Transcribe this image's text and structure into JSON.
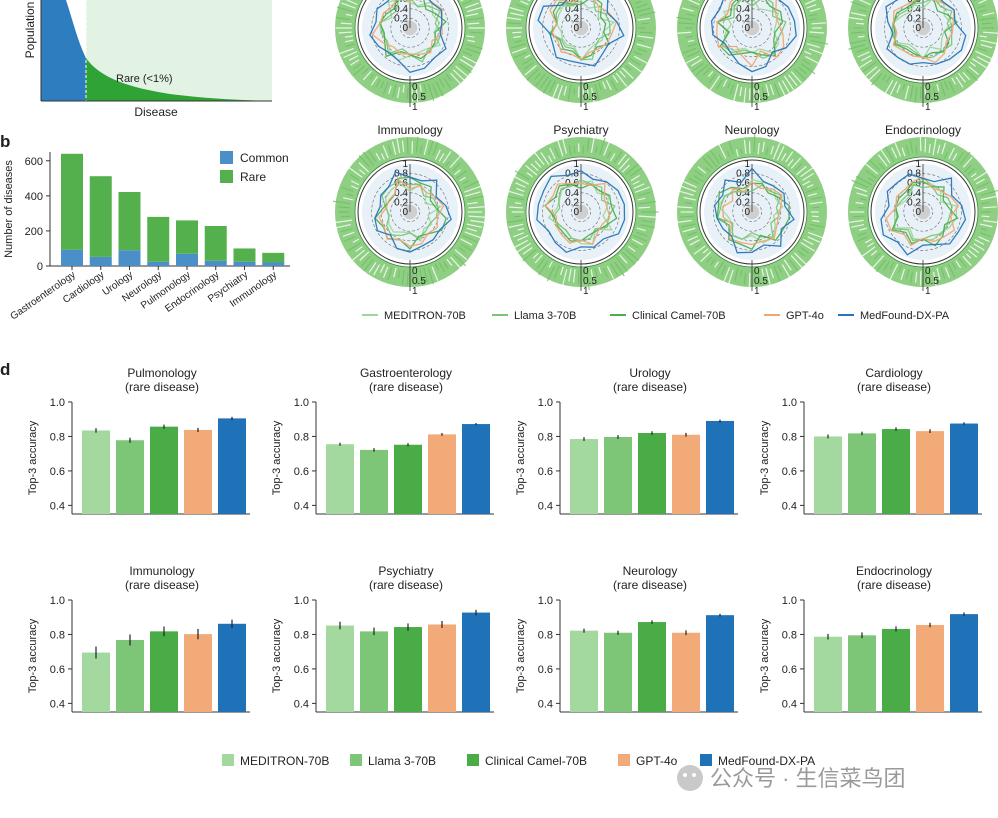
{
  "chart_data": [
    {
      "id": "panel-a",
      "type": "area",
      "xlabel": "Disease",
      "ylabel": "Population",
      "annotation": "Rare (<1%)",
      "colors": {
        "common": "#2e7ebf",
        "rare": "#2fa335",
        "rare_region": "#e3f3e3"
      }
    },
    {
      "id": "panel-b",
      "type": "bar",
      "letter": "b",
      "ylabel": "Number of diseases",
      "ylim": [
        0,
        650
      ],
      "yticks": [
        "0",
        "200",
        "400",
        "600"
      ],
      "categories": [
        "Gastroenterology",
        "Cardiology",
        "Urology",
        "Neurology",
        "Pulmonology",
        "Endocrinology",
        "Psychiatry",
        "Immunology"
      ],
      "series": [
        {
          "name": "Common",
          "color": "#4a8fc7",
          "values": [
            92,
            52,
            90,
            24,
            70,
            30,
            24,
            20
          ]
        },
        {
          "name": "Rare",
          "color": "#53b04d",
          "values": [
            548,
            460,
            332,
            256,
            190,
            198,
            76,
            55
          ]
        }
      ],
      "legend": "top-right"
    },
    {
      "id": "panel-c",
      "type": "radar",
      "radial_ticks": [
        "0",
        "0.2",
        "0.4",
        "0.6",
        "0.8",
        "1"
      ],
      "outer_ticks": [
        "0",
        "0.5",
        "1"
      ],
      "charts": [
        {
          "title": "",
          "values": {
            "MEDITRON-70B": 0.58,
            "Llama 3-70B": 0.6,
            "Clinical Camel-70B": 0.64,
            "GPT-4o": 0.66,
            "MedFound-DX-PA": 0.78
          }
        },
        {
          "title": "",
          "values": {
            "MEDITRON-70B": 0.55,
            "Llama 3-70B": 0.57,
            "Clinical Camel-70B": 0.6,
            "GPT-4o": 0.64,
            "MedFound-DX-PA": 0.76
          }
        },
        {
          "title": "",
          "values": {
            "MEDITRON-70B": 0.56,
            "Llama 3-70B": 0.58,
            "Clinical Camel-70B": 0.62,
            "GPT-4o": 0.65,
            "MedFound-DX-PA": 0.8
          }
        },
        {
          "title": "",
          "values": {
            "MEDITRON-70B": 0.55,
            "Llama 3-70B": 0.58,
            "Clinical Camel-70B": 0.6,
            "GPT-4o": 0.63,
            "MedFound-DX-PA": 0.78
          }
        },
        {
          "title": "Immunology",
          "values": {
            "MEDITRON-70B": 0.5,
            "Llama 3-70B": 0.55,
            "Clinical Camel-70B": 0.62,
            "GPT-4o": 0.6,
            "MedFound-DX-PA": 0.76
          }
        },
        {
          "title": "Psychiatry",
          "values": {
            "MEDITRON-70B": 0.6,
            "Llama 3-70B": 0.58,
            "Clinical Camel-70B": 0.62,
            "GPT-4o": 0.64,
            "MedFound-DX-PA": 0.82
          }
        },
        {
          "title": "Neurology",
          "values": {
            "MEDITRON-70B": 0.6,
            "Llama 3-70B": 0.58,
            "Clinical Camel-70B": 0.66,
            "GPT-4o": 0.6,
            "MedFound-DX-PA": 0.8
          }
        },
        {
          "title": "Endocrinology",
          "values": {
            "MEDITRON-70B": 0.56,
            "Llama 3-70B": 0.58,
            "Clinical Camel-70B": 0.62,
            "GPT-4o": 0.64,
            "MedFound-DX-PA": 0.82
          }
        }
      ],
      "legend": [
        {
          "name": "MEDITRON-70B",
          "color": "#9fd69a"
        },
        {
          "name": "Llama 3-70B",
          "color": "#7cc576"
        },
        {
          "name": "Clinical Camel-70B",
          "color": "#4cae4c"
        },
        {
          "name": "GPT-4o",
          "color": "#f0a672"
        },
        {
          "name": "MedFound-DX-PA",
          "color": "#2676b8"
        }
      ]
    },
    {
      "id": "panel-d",
      "type": "bar",
      "letter": "d",
      "ylabel": "Top-3 accuracy",
      "ylim": [
        0.35,
        1.0
      ],
      "yticks": [
        "0.4",
        "0.6",
        "0.8",
        "1.0"
      ],
      "models": [
        {
          "name": "MEDITRON-70B",
          "color": "#a3d89e"
        },
        {
          "name": "Llama 3-70B",
          "color": "#7dc577"
        },
        {
          "name": "Clinical Camel-70B",
          "color": "#49ac47"
        },
        {
          "name": "GPT-4o",
          "color": "#f2ab78"
        },
        {
          "name": "MedFound-DX-PA",
          "color": "#1f72b7"
        }
      ],
      "charts": [
        {
          "title": "Pulmonology",
          "subtitle": "(rare disease)",
          "values": [
            0.835,
            0.778,
            0.857,
            0.838,
            0.905
          ],
          "errors": [
            0.013,
            0.015,
            0.012,
            0.012,
            0.009
          ]
        },
        {
          "title": "Gastroenterology",
          "subtitle": "(rare disease)",
          "values": [
            0.755,
            0.722,
            0.752,
            0.812,
            0.872
          ],
          "errors": [
            0.009,
            0.01,
            0.009,
            0.008,
            0.006
          ]
        },
        {
          "title": "Urology",
          "subtitle": "(rare disease)",
          "values": [
            0.785,
            0.797,
            0.82,
            0.81,
            0.89
          ],
          "errors": [
            0.011,
            0.011,
            0.01,
            0.011,
            0.008
          ]
        },
        {
          "title": "Cardiology",
          "subtitle": "(rare disease)",
          "values": [
            0.8,
            0.818,
            0.843,
            0.831,
            0.875
          ],
          "errors": [
            0.011,
            0.01,
            0.01,
            0.011,
            0.007
          ]
        },
        {
          "title": "Immunology",
          "subtitle": "(rare disease)",
          "values": [
            0.695,
            0.768,
            0.818,
            0.802,
            0.862
          ],
          "errors": [
            0.035,
            0.032,
            0.028,
            0.03,
            0.024
          ]
        },
        {
          "title": "Psychiatry",
          "subtitle": "(rare disease)",
          "values": [
            0.852,
            0.818,
            0.843,
            0.858,
            0.927
          ],
          "errors": [
            0.022,
            0.022,
            0.021,
            0.02,
            0.016
          ]
        },
        {
          "title": "Neurology",
          "subtitle": "(rare disease)",
          "values": [
            0.822,
            0.81,
            0.872,
            0.81,
            0.912
          ],
          "errors": [
            0.012,
            0.012,
            0.01,
            0.014,
            0.008
          ]
        },
        {
          "title": "Endocrinology",
          "subtitle": "(rare disease)",
          "values": [
            0.787,
            0.795,
            0.832,
            0.855,
            0.918
          ],
          "errors": [
            0.016,
            0.017,
            0.015,
            0.013,
            0.01
          ]
        }
      ]
    }
  ],
  "watermark": {
    "text": "公众号 · 生信菜鸟团"
  }
}
